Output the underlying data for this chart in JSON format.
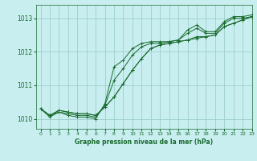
{
  "bg_color": "#c8eef0",
  "grid_color": "#9ecfca",
  "line_color": "#1a6b2e",
  "xlabel": "Graphe pression niveau de la mer (hPa)",
  "xmin": -0.5,
  "xmax": 23,
  "ymin": 1009.7,
  "ymax": 1013.4,
  "yticks": [
    1010,
    1011,
    1012,
    1013
  ],
  "xticks": [
    0,
    1,
    2,
    3,
    4,
    5,
    6,
    7,
    8,
    9,
    10,
    11,
    12,
    13,
    14,
    15,
    16,
    17,
    18,
    19,
    20,
    21,
    22,
    23
  ],
  "series": [
    [
      1010.3,
      1010.1,
      1010.25,
      1010.2,
      1010.15,
      1010.15,
      1010.1,
      1010.35,
      1010.65,
      1011.05,
      1011.45,
      1011.8,
      1012.1,
      1012.2,
      1012.25,
      1012.3,
      1012.35,
      1012.4,
      1012.45,
      1012.5,
      1012.75,
      1012.85,
      1012.95,
      1013.05
    ],
    [
      1010.3,
      1010.1,
      1010.25,
      1010.2,
      1010.15,
      1010.15,
      1010.1,
      1010.35,
      1010.65,
      1011.05,
      1011.45,
      1011.8,
      1012.1,
      1012.2,
      1012.25,
      1012.3,
      1012.35,
      1012.45,
      1012.45,
      1012.5,
      1012.75,
      1012.85,
      1012.95,
      1013.05
    ],
    [
      1010.3,
      1010.1,
      1010.2,
      1010.15,
      1010.1,
      1010.1,
      1010.05,
      1010.4,
      1011.15,
      1011.5,
      1011.9,
      1012.15,
      1012.25,
      1012.25,
      1012.3,
      1012.35,
      1012.55,
      1012.7,
      1012.55,
      1012.55,
      1012.85,
      1013.0,
      1013.0,
      1013.05
    ],
    [
      1010.3,
      1010.05,
      1010.2,
      1010.1,
      1010.05,
      1010.05,
      1010.0,
      1010.45,
      1011.55,
      1011.75,
      1012.1,
      1012.25,
      1012.3,
      1012.3,
      1012.3,
      1012.35,
      1012.65,
      1012.8,
      1012.6,
      1012.6,
      1012.9,
      1013.05,
      1013.05,
      1013.1
    ]
  ]
}
